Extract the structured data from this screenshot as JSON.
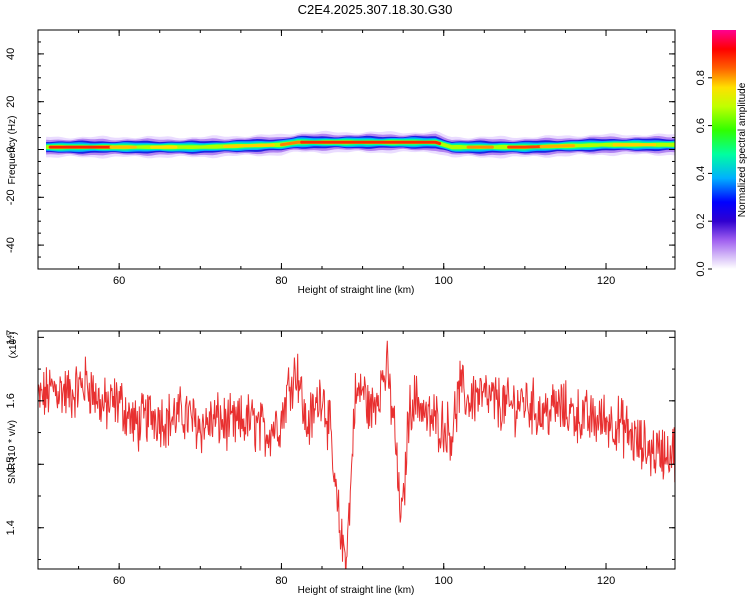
{
  "title": "C2E4.2025.307.18.30.G30",
  "colors": {
    "snr_line": "#e83030",
    "band_core": "#ff2a00",
    "background": "#ffffff"
  },
  "chart_data": [
    {
      "type": "heatmap",
      "name": "spectrogram",
      "xlabel": "Height of straight line (km)",
      "ylabel": "Frequency (Hz)",
      "xlim": [
        50,
        128.5
      ],
      "ylim": [
        -50,
        50
      ],
      "xticks": [
        60,
        80,
        100,
        120
      ],
      "yticks": [
        40,
        20,
        0,
        -20,
        -40
      ],
      "colorbar": {
        "label": "Normalized spectral amplitude",
        "range": [
          0,
          1
        ],
        "ticks": [
          0.0,
          0.2,
          0.4,
          0.6,
          0.8
        ],
        "colors": [
          "#ffffff",
          "#c090f0",
          "#5000c8",
          "#0000ff",
          "#00c8ff",
          "#00ff80",
          "#40ff00",
          "#ffff00",
          "#ff8000",
          "#ff0000",
          "#ff0080"
        ]
      },
      "band": {
        "center_hz_by_height": [
          [
            51,
            1
          ],
          [
            60,
            1
          ],
          [
            70,
            1
          ],
          [
            80,
            2
          ],
          [
            82,
            3
          ],
          [
            90,
            3
          ],
          [
            99,
            3
          ],
          [
            101,
            1
          ],
          [
            110,
            1
          ],
          [
            120,
            2
          ],
          [
            128.5,
            2
          ]
        ],
        "half_width_hz": 3,
        "description_peaks": [
          [
            55,
            0.95
          ],
          [
            65,
            0.6
          ],
          [
            75,
            0.7
          ],
          [
            85,
            0.95
          ],
          [
            95,
            0.95
          ],
          [
            110,
            0.8
          ],
          [
            125,
            0.6
          ]
        ]
      }
    },
    {
      "type": "line",
      "name": "snr",
      "xlabel": "Height of straight line (km)",
      "ylabel": "SNR (10 * v/v)",
      "exponent_label": "(x10",
      "exponent_power": "4",
      "exponent_close": ")",
      "xlim": [
        50,
        128.5
      ],
      "ylim": [
        1.335,
        1.71
      ],
      "xticks": [
        60,
        80,
        100,
        120
      ],
      "yticks": [
        1.4,
        1.5,
        1.6,
        1.7
      ],
      "ytick_labels": [
        "1.4",
        "1.5",
        "1.6",
        "1.7"
      ],
      "series": [
        {
          "name": "SNR",
          "x": [
            50,
            52,
            54,
            56,
            58,
            60,
            62,
            64,
            66,
            68,
            70,
            72,
            74,
            76,
            78,
            80,
            81,
            82,
            83,
            84,
            85,
            86,
            86.5,
            87,
            87.5,
            88,
            88.5,
            89,
            90,
            91,
            92,
            93,
            94,
            94.5,
            95,
            95.5,
            96,
            97,
            98,
            99,
            100,
            101,
            102,
            103,
            104,
            106,
            108,
            110,
            112,
            114,
            116,
            118,
            120,
            122,
            124,
            126,
            128.5
          ],
          "values": [
            1.6,
            1.62,
            1.61,
            1.63,
            1.59,
            1.6,
            1.56,
            1.58,
            1.57,
            1.58,
            1.56,
            1.57,
            1.56,
            1.57,
            1.55,
            1.57,
            1.63,
            1.65,
            1.56,
            1.58,
            1.62,
            1.55,
            1.47,
            1.42,
            1.37,
            1.36,
            1.45,
            1.6,
            1.62,
            1.58,
            1.62,
            1.65,
            1.55,
            1.44,
            1.42,
            1.55,
            1.6,
            1.6,
            1.57,
            1.57,
            1.56,
            1.55,
            1.62,
            1.6,
            1.61,
            1.6,
            1.59,
            1.6,
            1.58,
            1.59,
            1.58,
            1.57,
            1.57,
            1.56,
            1.53,
            1.52,
            1.52
          ]
        }
      ]
    }
  ]
}
